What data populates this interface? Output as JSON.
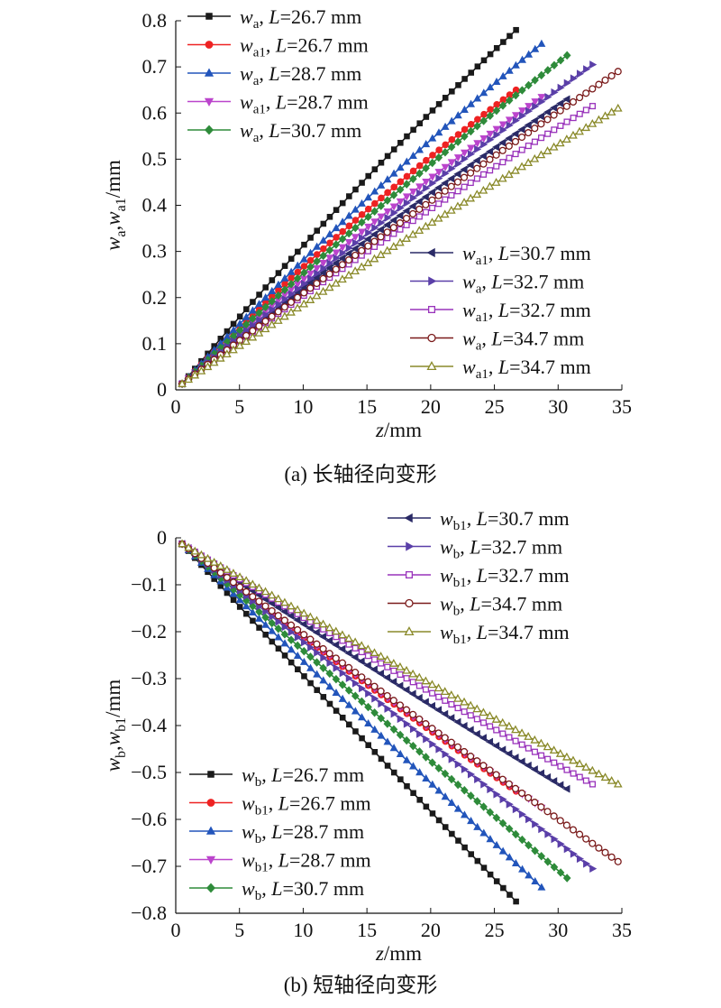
{
  "chart_data": [
    {
      "type": "line",
      "caption": "(a) 长轴径向变形",
      "xlabel": {
        "italic": "z",
        "rest": "/mm"
      },
      "ylabel": {
        "parts": [
          {
            "t": "w",
            "i": true
          },
          {
            "t": "a",
            "sub": true
          },
          {
            "t": ","
          },
          {
            "t": "w",
            "i": true
          },
          {
            "t": "a1",
            "sub": true
          },
          {
            "t": "/mm"
          }
        ]
      },
      "xlim": [
        0,
        35
      ],
      "ylim": [
        0,
        0.8
      ],
      "xticks": [
        "0",
        "5",
        "10",
        "15",
        "20",
        "25",
        "30",
        "35"
      ],
      "yticks": [
        "0",
        "0.1",
        "0.2",
        "0.3",
        "0.4",
        "0.5",
        "0.6",
        "0.7",
        "0.8"
      ],
      "series": [
        {
          "name": {
            "w": "w",
            "sub": "a",
            "L": "L",
            "eq": "=26.7 mm"
          },
          "color": "#1a1a1a",
          "marker": "square",
          "xmax": 26.7,
          "end": 0.78,
          "curv": 0.12
        },
        {
          "name": {
            "w": "w",
            "sub": "a1",
            "L": "L",
            "eq": "=26.7 mm"
          },
          "color": "#ee2222",
          "marker": "circle",
          "xmax": 26.7,
          "end": 0.65,
          "curv": 0.15
        },
        {
          "name": {
            "w": "w",
            "sub": "a",
            "L": "L",
            "eq": "=28.7 mm"
          },
          "color": "#2255bb",
          "marker": "triangle-up",
          "xmax": 28.7,
          "end": 0.75,
          "curv": 0.12
        },
        {
          "name": {
            "w": "w",
            "sub": "a1",
            "L": "L",
            "eq": "=28.7 mm"
          },
          "color": "#bb44cc",
          "marker": "triangle-down",
          "xmax": 28.7,
          "end": 0.635,
          "curv": 0.12
        },
        {
          "name": {
            "w": "w",
            "sub": "a",
            "L": "L",
            "eq": "=30.7 mm"
          },
          "color": "#2e8b3a",
          "marker": "diamond",
          "xmax": 30.7,
          "end": 0.725,
          "curv": 0.1
        },
        {
          "name": {
            "w": "w",
            "sub": "a1",
            "L": "L",
            "eq": "=30.7 mm"
          },
          "color": "#2a2a66",
          "marker": "triangle-left",
          "xmax": 30.7,
          "end": 0.63,
          "curv": 0.1
        },
        {
          "name": {
            "w": "w",
            "sub": "a",
            "L": "L",
            "eq": "=32.7 mm"
          },
          "color": "#5a3fa8",
          "marker": "triangle-right",
          "xmax": 32.7,
          "end": 0.705,
          "curv": 0.08
        },
        {
          "name": {
            "w": "w",
            "sub": "a1",
            "L": "L",
            "eq": "=32.7 mm"
          },
          "color": "#9933bb",
          "marker": "square-open",
          "xmax": 32.7,
          "end": 0.615,
          "curv": 0.1
        },
        {
          "name": {
            "w": "w",
            "sub": "a",
            "L": "L",
            "eq": "=34.7 mm"
          },
          "color": "#7a1a1a",
          "marker": "circle-open",
          "xmax": 34.7,
          "end": 0.69,
          "curv": 0.06
        },
        {
          "name": {
            "w": "w",
            "sub": "a1",
            "L": "L",
            "eq": "=34.7 mm"
          },
          "color": "#8a8a2a",
          "marker": "triangle-open",
          "xmax": 34.7,
          "end": 0.61,
          "curv": 0.05
        }
      ],
      "legend_groups": [
        {
          "placement": "top-left",
          "series": [
            0,
            1,
            2,
            3,
            4
          ]
        },
        {
          "placement": "bottom-right",
          "series": [
            5,
            6,
            7,
            8,
            9
          ]
        }
      ]
    },
    {
      "type": "line",
      "caption": "(b) 短轴径向变形",
      "xlabel": {
        "italic": "z",
        "rest": "/mm"
      },
      "ylabel": {
        "parts": [
          {
            "t": "w",
            "i": true
          },
          {
            "t": "b",
            "sub": true
          },
          {
            "t": ","
          },
          {
            "t": "w",
            "i": true
          },
          {
            "t": "b1",
            "sub": true
          },
          {
            "t": "/mm"
          }
        ]
      },
      "xlim": [
        0,
        35
      ],
      "ylim": [
        -0.8,
        0
      ],
      "xticks": [
        "0",
        "5",
        "10",
        "15",
        "20",
        "25",
        "30",
        "35"
      ],
      "yticks": [
        "0",
        "−0.1",
        "−0.2",
        "−0.3",
        "−0.4",
        "−0.5",
        "−0.6",
        "−0.7",
        "−0.8"
      ],
      "series": [
        {
          "name": {
            "w": "w",
            "sub": "b",
            "L": "L",
            "eq": "=26.7 mm"
          },
          "color": "#1a1a1a",
          "marker": "square",
          "xmax": 26.7,
          "end": -0.775,
          "curv": 0.02
        },
        {
          "name": {
            "w": "w",
            "sub": "b1",
            "L": "L",
            "eq": "=26.7 mm"
          },
          "color": "#ee2222",
          "marker": "circle",
          "xmax": 26.7,
          "end": -0.54,
          "curv": 0.06
        },
        {
          "name": {
            "w": "w",
            "sub": "b",
            "L": "L",
            "eq": "=28.7 mm"
          },
          "color": "#2255bb",
          "marker": "triangle-up",
          "xmax": 28.7,
          "end": -0.745,
          "curv": 0.02
        },
        {
          "name": {
            "w": "w",
            "sub": "b1",
            "L": "L",
            "eq": "=28.7 mm"
          },
          "color": "#bb44cc",
          "marker": "triangle-down",
          "xmax": 28.7,
          "end": -0.575,
          "curv": 0.05
        },
        {
          "name": {
            "w": "w",
            "sub": "b",
            "L": "L",
            "eq": "=30.7 mm"
          },
          "color": "#2e8b3a",
          "marker": "diamond",
          "xmax": 30.7,
          "end": -0.725,
          "curv": 0.02
        },
        {
          "name": {
            "w": "w",
            "sub": "b1",
            "L": "L",
            "eq": "=30.7 mm"
          },
          "color": "#2a2a66",
          "marker": "triangle-left",
          "xmax": 30.7,
          "end": -0.535,
          "curv": 0.05
        },
        {
          "name": {
            "w": "w",
            "sub": "b",
            "L": "L",
            "eq": "=32.7 mm"
          },
          "color": "#5a3fa8",
          "marker": "triangle-right",
          "xmax": 32.7,
          "end": -0.705,
          "curv": 0.03
        },
        {
          "name": {
            "w": "w",
            "sub": "b1",
            "L": "L",
            "eq": "=32.7 mm"
          },
          "color": "#9933bb",
          "marker": "square-open",
          "xmax": 32.7,
          "end": -0.525,
          "curv": 0.05
        },
        {
          "name": {
            "w": "w",
            "sub": "b",
            "L": "L",
            "eq": "=34.7 mm"
          },
          "color": "#7a1a1a",
          "marker": "circle-open",
          "xmax": 34.7,
          "end": -0.69,
          "curv": 0.03
        },
        {
          "name": {
            "w": "w",
            "sub": "b1",
            "L": "L",
            "eq": "=34.7 mm"
          },
          "color": "#8a8a2a",
          "marker": "triangle-open",
          "xmax": 34.7,
          "end": -0.525,
          "curv": 0.05
        }
      ],
      "legend_groups": [
        {
          "placement": "top-right",
          "series": [
            5,
            6,
            7,
            8,
            9
          ]
        },
        {
          "placement": "bottom-left",
          "series": [
            0,
            1,
            2,
            3,
            4
          ]
        }
      ]
    }
  ]
}
